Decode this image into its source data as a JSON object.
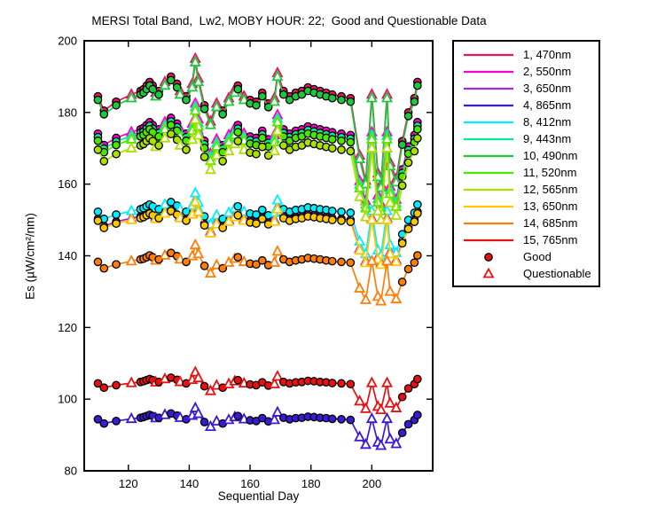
{
  "title": "MERSI Total Band,  Lw2, MOBY HOUR: 22;  Good and Questionable Data",
  "chart_data": {
    "type": "line",
    "xlabel": "Sequential Day",
    "ylabel": "Es (µW/cm²/nm)",
    "xlim": [
      105.5,
      220
    ],
    "ylim": [
      80,
      200
    ],
    "xticks": [
      120,
      140,
      160,
      180,
      200
    ],
    "yticks": [
      80,
      100,
      120,
      140,
      160,
      180,
      200
    ],
    "grid": false,
    "legend_position": "right-outside",
    "x": [
      110,
      112,
      116,
      121,
      124,
      125,
      126,
      127,
      128,
      129,
      130,
      132,
      134,
      136,
      137,
      139,
      141,
      142,
      143,
      145,
      147,
      149,
      151,
      153,
      155,
      156,
      158,
      160,
      162,
      164,
      166,
      168,
      169,
      171,
      173,
      175,
      177,
      179,
      181,
      183,
      185,
      187,
      190,
      193,
      196,
      198,
      200,
      202,
      203,
      205,
      206,
      208,
      210,
      212,
      214,
      215
    ],
    "quality": [
      "G",
      "G",
      "G",
      "Q",
      "G",
      "G",
      "G",
      "G",
      "G",
      "Q",
      "G",
      "Q",
      "G",
      "G",
      "Q",
      "G",
      "Q",
      "Q",
      "Q",
      "G",
      "Q",
      "Q",
      "G",
      "Q",
      "Q",
      "G",
      "Q",
      "G",
      "G",
      "G",
      "G",
      "Q",
      "Q",
      "G",
      "G",
      "G",
      "G",
      "G",
      "G",
      "G",
      "G",
      "G",
      "G",
      "G",
      "Q",
      "Q",
      "Q",
      "Q",
      "Q",
      "Q",
      "Q",
      "Q",
      "G",
      "G",
      "G",
      "G"
    ],
    "good_label": "Good",
    "questionable_label": "Questionable",
    "quality_marker_color": "#e81010",
    "series": [
      {
        "name": "1, 470nm",
        "color": "#e8145f",
        "values": [
          184.5,
          180.5,
          183,
          185,
          186,
          186.5,
          187.5,
          188.5,
          187.5,
          185.5,
          186,
          188.5,
          190,
          188,
          186,
          184.5,
          188,
          195,
          189.5,
          182,
          177.5,
          182.5,
          180.5,
          184,
          186.5,
          187.5,
          184.5,
          183.5,
          183,
          185.5,
          182.5,
          184,
          191,
          186,
          184.5,
          185.5,
          186,
          187,
          186.5,
          186,
          185.5,
          185,
          184.5,
          184,
          168,
          161,
          185,
          163,
          160,
          185,
          166,
          161.5,
          172,
          180,
          184,
          188.5
        ]
      },
      {
        "name": "2, 550nm",
        "color": "#ff00cc",
        "values": [
          174.1,
          170.9,
          172.9,
          174.5,
          175.3,
          175.7,
          176.5,
          177.3,
          176.5,
          174.9,
          175.3,
          177.3,
          178.5,
          176.9,
          175.3,
          174.1,
          176.9,
          182.5,
          178.1,
          172.1,
          168.5,
          172.5,
          170.9,
          173.7,
          175.7,
          176.5,
          174.1,
          173.3,
          172.9,
          174.9,
          172.5,
          173.7,
          179.3,
          175.3,
          174.1,
          174.9,
          175.3,
          176.1,
          175.7,
          175.3,
          174.9,
          174.5,
          174.1,
          173.7,
          160.9,
          155.3,
          174.5,
          156.9,
          154.5,
          174.5,
          159.3,
          155.7,
          164.1,
          170.5,
          173.7,
          177.3
        ]
      },
      {
        "name": "3, 650nm",
        "color": "#a822e8",
        "values": [
          150.3,
          148.3,
          149.5,
          150.5,
          151,
          151.3,
          151.8,
          152.3,
          151.8,
          150.8,
          151,
          152.3,
          153,
          152,
          151,
          150.3,
          152,
          155.5,
          152.8,
          149,
          146.8,
          149.3,
          148.3,
          150,
          151.3,
          151.8,
          150.3,
          149.8,
          149.5,
          150.8,
          149.3,
          150,
          153.5,
          151,
          150.3,
          150.8,
          151,
          151.5,
          151.3,
          151,
          150.8,
          150.5,
          150.3,
          150,
          142,
          138.5,
          150.5,
          139.5,
          138,
          150.5,
          141,
          138.8,
          144,
          148,
          150,
          152.3
        ]
      },
      {
        "name": "4, 865nm",
        "color": "#3b1bd1",
        "values": [
          94.4,
          93.2,
          93.9,
          94.5,
          94.8,
          95,
          95.3,
          95.6,
          95.3,
          94.7,
          94.8,
          95.6,
          96,
          95.4,
          94.8,
          94.4,
          95.4,
          97.5,
          95.9,
          93.6,
          92.3,
          93.8,
          93.2,
          94.2,
          95,
          95.3,
          94.4,
          94.1,
          93.9,
          94.7,
          93.8,
          94.2,
          96.3,
          94.8,
          94.4,
          94.7,
          94.8,
          95.1,
          95,
          94.8,
          94.7,
          94.5,
          94.4,
          94.2,
          89.4,
          87.3,
          94.5,
          87.9,
          87,
          94.5,
          88.8,
          87.5,
          90.6,
          93,
          94.2,
          95.6
        ]
      },
      {
        "name": "8, 412nm",
        "color": "#00eeff",
        "values": [
          152.3,
          150.3,
          151.5,
          152.5,
          153,
          153.3,
          153.8,
          154.3,
          153.8,
          152.8,
          153,
          154.3,
          155,
          154,
          153,
          152.3,
          154,
          157.5,
          154.8,
          151,
          148.8,
          151.3,
          150.3,
          152,
          153.3,
          153.8,
          152.3,
          151.8,
          151.5,
          152.8,
          151.3,
          152,
          155.5,
          153,
          152.3,
          152.8,
          153,
          153.5,
          153.3,
          153,
          152.8,
          152.5,
          152.3,
          152,
          144,
          140.5,
          152.5,
          141.5,
          140,
          152.5,
          143,
          140.8,
          146,
          150,
          152,
          154.3
        ]
      },
      {
        "name": "9, 443nm",
        "color": "#00ed94",
        "values": [
          173.1,
          169.9,
          171.9,
          173.5,
          174.3,
          174.7,
          175.5,
          176.3,
          175.5,
          173.9,
          174.3,
          176.3,
          177.5,
          175.9,
          174.3,
          173.1,
          175.9,
          181.5,
          177.1,
          171.1,
          167.5,
          171.5,
          169.9,
          172.7,
          174.7,
          175.5,
          173.1,
          172.3,
          171.9,
          173.9,
          171.5,
          172.7,
          178.3,
          174.3,
          173.1,
          173.9,
          174.3,
          175.1,
          174.7,
          174.3,
          173.9,
          173.5,
          173.1,
          172.7,
          159.9,
          154.3,
          173.5,
          155.9,
          153.5,
          173.5,
          158.3,
          154.7,
          163.1,
          169.5,
          172.7,
          176.3
        ]
      },
      {
        "name": "10, 490nm",
        "color": "#1dc83d",
        "values": [
          183.5,
          179.5,
          182,
          184,
          185,
          185.5,
          186.5,
          187.5,
          186.5,
          184.5,
          185,
          187.5,
          189,
          187,
          185,
          183.5,
          187,
          194,
          188.5,
          181,
          176.5,
          181.5,
          179.5,
          183,
          185.5,
          186.5,
          183.5,
          182.5,
          182,
          184.5,
          181.5,
          183,
          190,
          185,
          183.5,
          184.5,
          185,
          186,
          185.5,
          185,
          184.5,
          184,
          183.5,
          183,
          167,
          160,
          184,
          162,
          159,
          184,
          165,
          160.5,
          171,
          179,
          183,
          187.5
        ]
      },
      {
        "name": "11, 520nm",
        "color": "#4ce600",
        "values": [
          172.1,
          168.9,
          170.9,
          172.5,
          173.3,
          173.7,
          174.5,
          175.3,
          174.5,
          172.9,
          173.3,
          175.3,
          176.5,
          174.9,
          173.3,
          172.1,
          174.9,
          180.5,
          176.1,
          170.1,
          166.5,
          170.5,
          168.9,
          171.7,
          173.7,
          174.5,
          172.1,
          171.3,
          170.9,
          172.9,
          170.5,
          171.7,
          177.3,
          173.3,
          172.1,
          172.9,
          173.3,
          174.1,
          173.7,
          173.3,
          172.9,
          172.5,
          172.1,
          171.7,
          158.9,
          153.3,
          172.5,
          154.9,
          152.5,
          172.5,
          157.3,
          153.7,
          162.1,
          168.5,
          171.7,
          175.3
        ]
      },
      {
        "name": "12, 565nm",
        "color": "#abe000",
        "values": [
          169.6,
          166.4,
          168.4,
          170,
          170.8,
          171.2,
          172,
          172.8,
          172,
          170.4,
          170.8,
          172.8,
          174,
          172.4,
          170.8,
          169.6,
          172.4,
          178,
          173.6,
          167.6,
          164,
          168,
          166.4,
          169.2,
          171.2,
          172,
          169.6,
          168.8,
          168.4,
          170.4,
          168,
          169.2,
          174.8,
          170.8,
          169.6,
          170.4,
          170.8,
          171.6,
          171.2,
          170.8,
          170.4,
          170,
          169.6,
          169.2,
          156.4,
          150.8,
          170,
          152.4,
          150,
          170,
          154.8,
          151.2,
          159.6,
          166,
          169.2,
          172.8
        ]
      },
      {
        "name": "13, 650nm",
        "color": "#ffc800",
        "values": [
          149.8,
          147.8,
          149,
          150,
          150.5,
          150.8,
          151.3,
          151.8,
          151.3,
          150.3,
          150.5,
          151.8,
          152.5,
          151.5,
          150.5,
          149.8,
          151.5,
          155,
          152.3,
          148.5,
          146.3,
          148.8,
          147.8,
          149.5,
          150.8,
          151.3,
          149.8,
          149.3,
          149,
          150.3,
          148.8,
          149.5,
          153,
          150.5,
          149.8,
          150.3,
          150.5,
          151,
          150.8,
          150.5,
          150.3,
          150,
          149.8,
          149.5,
          141.5,
          138,
          150,
          139,
          137.5,
          150,
          140.5,
          138.3,
          143.5,
          147.5,
          149.5,
          151.8
        ]
      },
      {
        "name": "14, 685nm",
        "color": "#ff7d0a",
        "values": [
          138.3,
          136.5,
          137.6,
          138.5,
          139,
          139.2,
          139.6,
          140.1,
          139.6,
          138.7,
          139,
          140.1,
          140.8,
          139.9,
          139,
          138.3,
          139.9,
          143,
          140.5,
          137.2,
          135.1,
          137.4,
          136.5,
          138.1,
          139.2,
          139.6,
          138.3,
          137.8,
          137.6,
          138.7,
          137.4,
          138.1,
          141.2,
          139,
          138.3,
          138.7,
          139,
          139.4,
          139.2,
          139,
          138.7,
          138.5,
          138.3,
          138.1,
          130.9,
          127.7,
          138.5,
          128.6,
          127.3,
          138.5,
          130,
          127.9,
          132.7,
          136.3,
          138.1,
          140.1
        ]
      },
      {
        "name": "15, 765nm",
        "color": "#e81010",
        "values": [
          104.4,
          103.2,
          103.9,
          104.5,
          104.8,
          105,
          105.3,
          105.6,
          105.3,
          104.7,
          104.8,
          105.6,
          106,
          105.4,
          104.8,
          104.4,
          105.4,
          107.5,
          105.9,
          103.6,
          102.3,
          103.8,
          103.2,
          104.2,
          105,
          105.3,
          104.4,
          104.1,
          103.9,
          104.7,
          103.8,
          104.2,
          106.3,
          104.8,
          104.4,
          104.7,
          104.8,
          105.1,
          105,
          104.8,
          104.7,
          104.5,
          104.4,
          104.2,
          99.4,
          97.3,
          104.5,
          97.9,
          97,
          104.5,
          98.8,
          97.5,
          100.6,
          103,
          104.2,
          105.6
        ]
      }
    ]
  }
}
